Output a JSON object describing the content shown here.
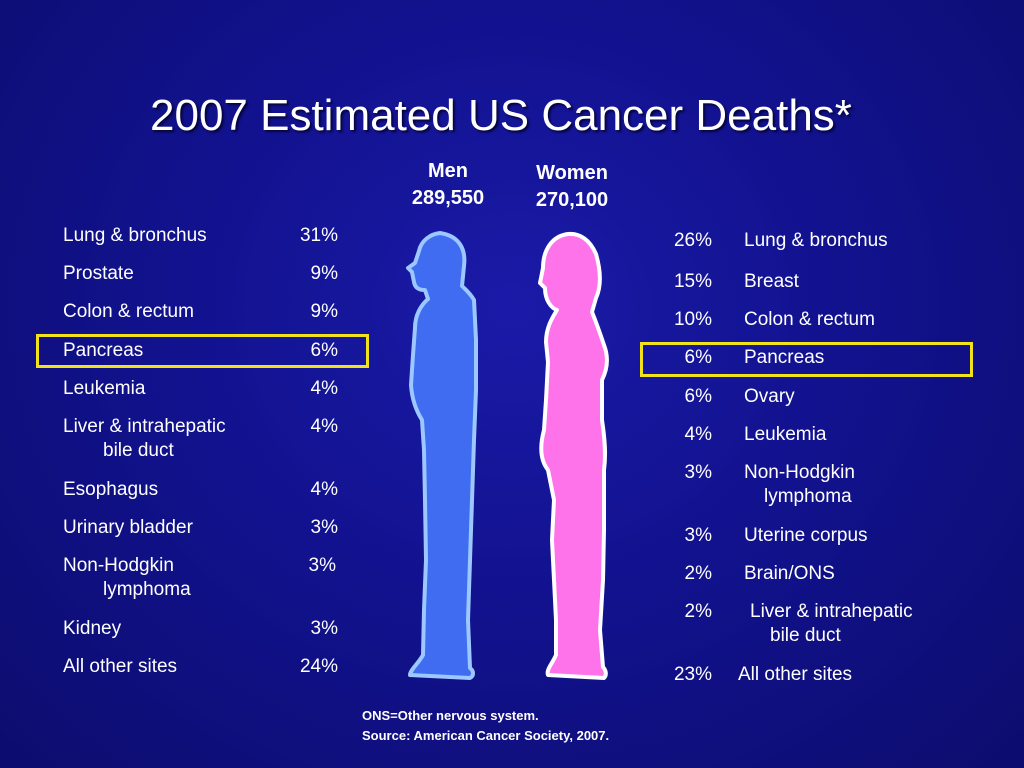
{
  "title": "2007 Estimated US Cancer Deaths*",
  "men": {
    "label": "Men",
    "total": "289,550"
  },
  "women": {
    "label": "Women",
    "total": "270,100"
  },
  "men_sites": [
    {
      "site": "Lung & bronchus",
      "pct": "31%"
    },
    {
      "site": "Prostate",
      "pct": "9%"
    },
    {
      "site": "Colon & rectum",
      "pct": "9%"
    },
    {
      "site": "Pancreas",
      "pct": "6%"
    },
    {
      "site": "Leukemia",
      "pct": "4%"
    },
    {
      "site": "Liver & intrahepatic",
      "site_line2": "bile duct",
      "pct": "4%"
    },
    {
      "site": "Esophagus",
      "pct": "4%"
    },
    {
      "site": "Urinary bladder",
      "pct": "3%"
    },
    {
      "site": "Non-Hodgkin",
      "site_line2": "lymphoma",
      "pct": "3%"
    },
    {
      "site": "Kidney",
      "pct": "3%"
    },
    {
      "site": "All other sites",
      "pct": "24%"
    }
  ],
  "women_sites": [
    {
      "site": "Lung & bronchus",
      "pct": "26%"
    },
    {
      "site": "Breast",
      "pct": "15%"
    },
    {
      "site": "Colon & rectum",
      "pct": "10%"
    },
    {
      "site": "Pancreas",
      "pct": "6%"
    },
    {
      "site": "Ovary",
      "pct": "6%"
    },
    {
      "site": "Leukemia",
      "pct": "4%"
    },
    {
      "site": "Non-Hodgkin",
      "site_line2": "lymphoma",
      "pct": "3%"
    },
    {
      "site": "Uterine corpus",
      "pct": "3%"
    },
    {
      "site": "Brain/ONS",
      "pct": "2%"
    },
    {
      "site": "Liver & intrahepatic",
      "site_line2": "bile duct",
      "pct": "2%"
    },
    {
      "site": "All other sites",
      "pct": "23%"
    }
  ],
  "footnote": {
    "line1": "ONS=Other nervous system.",
    "line2": "Source: American Cancer Society, 2007."
  },
  "colors": {
    "background": "#12128f",
    "men_figure": "#3f6cf0",
    "men_outline": "#9cc8ff",
    "women_figure": "#ff73ea",
    "women_outline": "#ffffff",
    "highlight": "#f2e21c"
  }
}
